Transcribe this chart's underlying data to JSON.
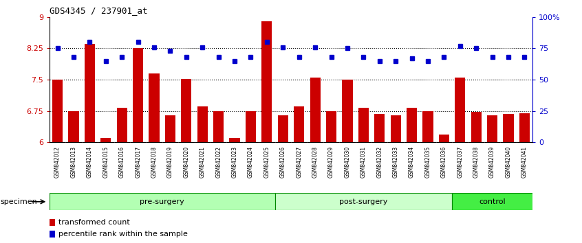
{
  "title": "GDS4345 / 237901_at",
  "samples": [
    "GSM842012",
    "GSM842013",
    "GSM842014",
    "GSM842015",
    "GSM842016",
    "GSM842017",
    "GSM842018",
    "GSM842019",
    "GSM842020",
    "GSM842021",
    "GSM842022",
    "GSM842023",
    "GSM842024",
    "GSM842025",
    "GSM842026",
    "GSM842027",
    "GSM842028",
    "GSM842029",
    "GSM842030",
    "GSM842031",
    "GSM842032",
    "GSM842033",
    "GSM842034",
    "GSM842035",
    "GSM842036",
    "GSM842037",
    "GSM842038",
    "GSM842039",
    "GSM842040",
    "GSM842041"
  ],
  "bar_values": [
    7.5,
    6.75,
    8.35,
    6.1,
    6.82,
    8.25,
    7.65,
    6.65,
    7.52,
    6.85,
    6.75,
    6.1,
    6.75,
    8.9,
    6.65,
    6.85,
    7.55,
    6.75,
    7.5,
    6.83,
    6.68,
    6.65,
    6.82,
    6.75,
    6.18,
    7.55,
    6.72,
    6.65,
    6.68,
    6.7
  ],
  "percentile_values": [
    75,
    68,
    80,
    65,
    68,
    80,
    76,
    73,
    68,
    76,
    68,
    65,
    68,
    80,
    76,
    68,
    76,
    68,
    75,
    68,
    65,
    65,
    67,
    65,
    68,
    77,
    75,
    68,
    68,
    68
  ],
  "group_defs": [
    {
      "label": "pre-surgery",
      "start": 0,
      "end": 14,
      "color": "#b3ffb3"
    },
    {
      "label": "post-surgery",
      "start": 14,
      "end": 25,
      "color": "#ccffcc"
    },
    {
      "label": "control",
      "start": 25,
      "end": 30,
      "color": "#44ee44"
    }
  ],
  "ylim_left": [
    6,
    9
  ],
  "ylim_right": [
    0,
    100
  ],
  "yticks_left": [
    6,
    6.75,
    7.5,
    8.25,
    9
  ],
  "ytick_labels_left": [
    "6",
    "6.75",
    "7.5",
    "8.25",
    "9"
  ],
  "yticks_right": [
    0,
    25,
    50,
    75,
    100
  ],
  "ytick_labels_right": [
    "0",
    "25",
    "50",
    "75",
    "100%"
  ],
  "hlines": [
    6.75,
    7.5,
    8.25
  ],
  "bar_color": "#cc0000",
  "dot_color": "#0000cc",
  "bar_bottom": 6.0,
  "specimen_label": "specimen",
  "legend_bar": "transformed count",
  "legend_dot": "percentile rank within the sample",
  "xtick_bg": "#cccccc",
  "group_border_color": "#008800"
}
